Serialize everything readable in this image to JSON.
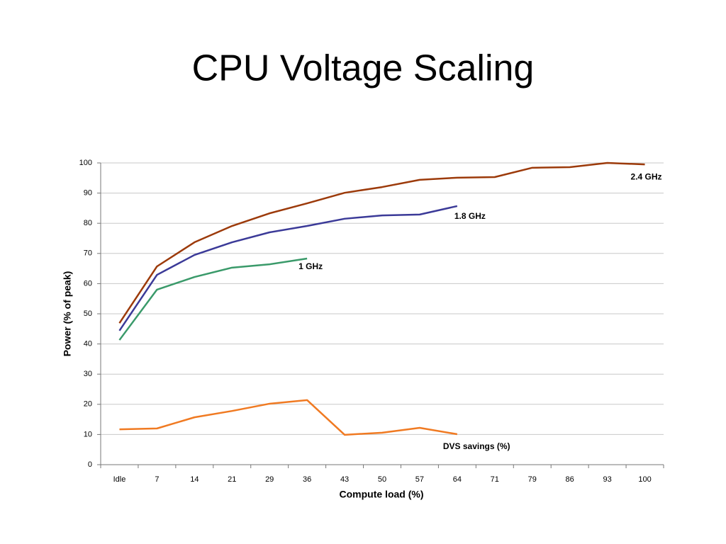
{
  "chart_data": {
    "type": "line",
    "title": "CPU Voltage Scaling",
    "xlabel": "Compute load (%)",
    "ylabel": "Power (% of peak)",
    "categories": [
      "Idle",
      "7",
      "14",
      "21",
      "29",
      "36",
      "43",
      "50",
      "57",
      "64",
      "71",
      "79",
      "86",
      "93",
      "100"
    ],
    "series": [
      {
        "name": "2.4 GHz",
        "color": "#9c3a0a",
        "values": [
          46.9,
          65.7,
          73.7,
          79.1,
          83.3,
          86.6,
          90.1,
          92,
          94.4,
          95.1,
          95.3,
          98.4,
          98.6,
          100,
          99.5
        ]
      },
      {
        "name": "1.8 GHz",
        "color": "#3b3a98",
        "values": [
          44.4,
          62.9,
          69.5,
          73.7,
          77,
          79.1,
          81.5,
          82.6,
          82.9,
          85.7,
          null,
          null,
          null,
          null,
          null
        ]
      },
      {
        "name": "1 GHz",
        "color": "#3a9a6a",
        "values": [
          41.3,
          58,
          62.2,
          65.3,
          66.4,
          68.3,
          null,
          null,
          null,
          null,
          null,
          null,
          null,
          null,
          null
        ]
      },
      {
        "name": "DVS savings (%)",
        "color": "#f07a22",
        "values": [
          11.7,
          12,
          15.7,
          17.8,
          20.2,
          21.4,
          9.9,
          10.6,
          12.2,
          10.1,
          null,
          null,
          null,
          null,
          null
        ]
      }
    ],
    "ylim": [
      0,
      100
    ],
    "yticks": [
      0,
      10,
      20,
      30,
      40,
      50,
      60,
      70,
      80,
      90,
      100
    ],
    "grid": true
  }
}
